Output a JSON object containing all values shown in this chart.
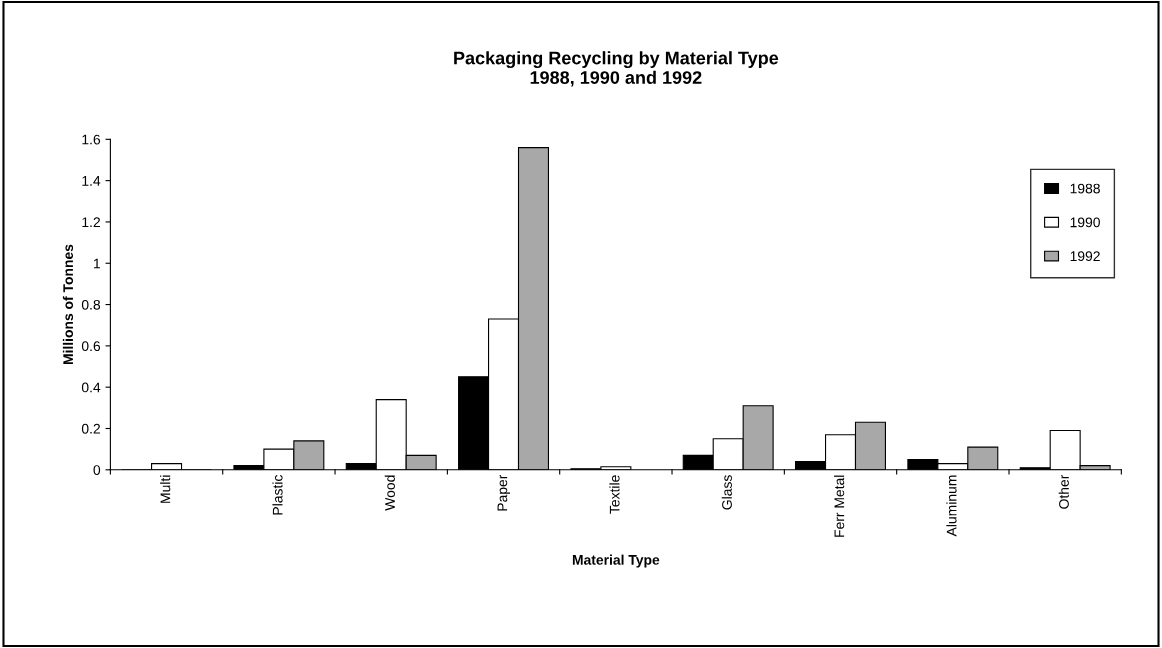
{
  "chart_data": {
    "type": "bar",
    "title": "Packaging Recycling by Material Type\n1988, 1990 and 1992",
    "xlabel": "Material Type",
    "ylabel": "Millions of Tonnes",
    "categories": [
      "Multi",
      "Plastic",
      "Wood",
      "Paper",
      "Textile",
      "Glass",
      "Ferr Metal",
      "Aluminum",
      "Other"
    ],
    "series": [
      {
        "name": "1988",
        "color": "#000000",
        "values": [
          0,
          0.02,
          0.03,
          0.45,
          0.005,
          0.07,
          0.04,
          0.05,
          0.01
        ]
      },
      {
        "name": "1990",
        "color": "#ffffff",
        "values": [
          0.03,
          0.1,
          0.34,
          0.73,
          0.015,
          0.15,
          0.17,
          0.03,
          0.19
        ]
      },
      {
        "name": "1992",
        "color": "#a8a8a8",
        "values": [
          0,
          0.14,
          0.07,
          1.56,
          null,
          0.31,
          0.23,
          0.11,
          0.02
        ]
      }
    ],
    "ylim": [
      0,
      1.6
    ],
    "yticks": [
      0,
      0.2,
      0.4,
      0.6,
      0.8,
      1,
      1.2,
      1.4,
      1.6
    ],
    "grid": false,
    "legend": "right"
  }
}
